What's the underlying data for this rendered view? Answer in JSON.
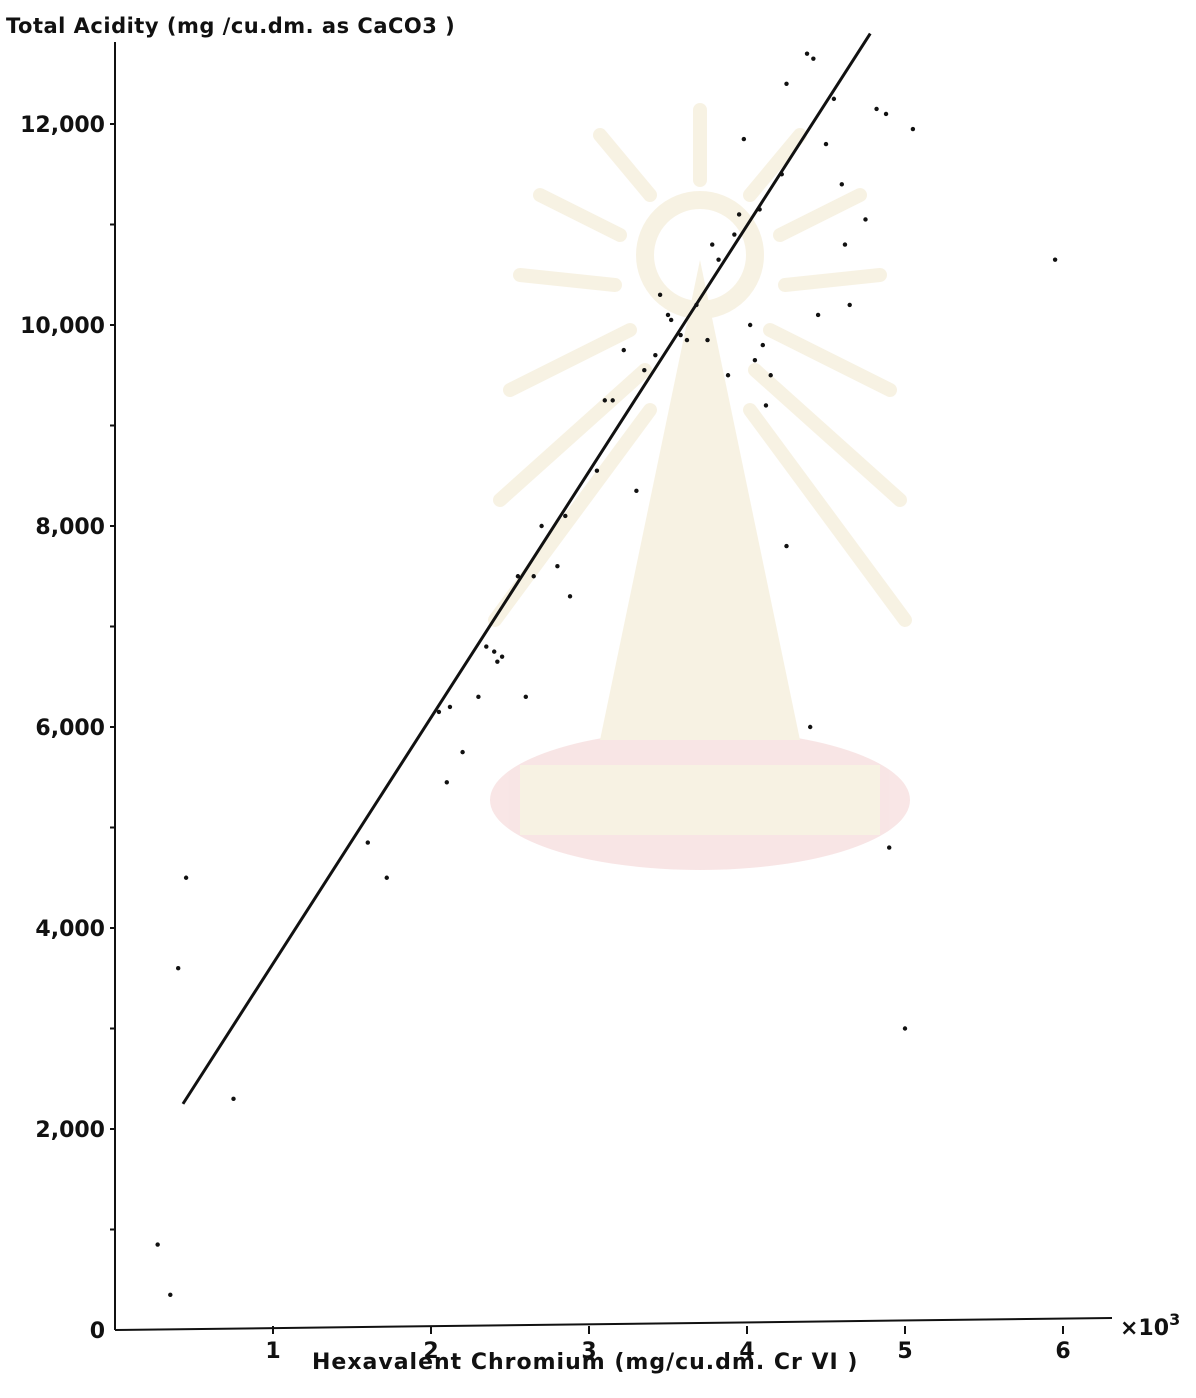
{
  "chart_data": {
    "type": "scatter",
    "title": "",
    "xlabel": "Hexavalent   Chromium (mg/cu.dm. Cr VI )",
    "ylabel": "Total   Acidity (mg /cu.dm.   as   CaCO3 )",
    "x_multiplier_label": "×10",
    "x_multiplier_exponent": "3",
    "xlim": [
      0,
      6.5
    ],
    "ylim": [
      0,
      13000
    ],
    "x_ticks": [
      "1",
      "2",
      "3",
      "4",
      "5",
      "6"
    ],
    "y_ticks": [
      "0",
      "2,000",
      "4,000",
      "6,000",
      "8,000",
      "10,000",
      "12,000"
    ],
    "grid": false,
    "fit_line": {
      "x": [
        0.43,
        4.78
      ],
      "y": [
        2250,
        12900
      ]
    },
    "points": [
      [
        0.27,
        850
      ],
      [
        0.35,
        350
      ],
      [
        0.75,
        2300
      ],
      [
        0.45,
        4500
      ],
      [
        0.4,
        3600
      ],
      [
        1.6,
        4850
      ],
      [
        1.72,
        4500
      ],
      [
        2.05,
        6150
      ],
      [
        2.1,
        5450
      ],
      [
        2.12,
        6200
      ],
      [
        2.2,
        5750
      ],
      [
        2.3,
        6300
      ],
      [
        2.35,
        6800
      ],
      [
        2.4,
        6750
      ],
      [
        2.45,
        6700
      ],
      [
        2.42,
        6650
      ],
      [
        2.6,
        6300
      ],
      [
        2.55,
        7500
      ],
      [
        2.65,
        7500
      ],
      [
        2.7,
        8000
      ],
      [
        2.8,
        7600
      ],
      [
        2.85,
        8100
      ],
      [
        2.88,
        7300
      ],
      [
        3.05,
        8550
      ],
      [
        3.1,
        9250
      ],
      [
        3.15,
        9250
      ],
      [
        3.3,
        8350
      ],
      [
        3.35,
        9550
      ],
      [
        3.22,
        9750
      ],
      [
        3.42,
        9700
      ],
      [
        3.45,
        10300
      ],
      [
        3.5,
        10100
      ],
      [
        3.52,
        10050
      ],
      [
        3.58,
        9900
      ],
      [
        3.62,
        9850
      ],
      [
        3.68,
        10200
      ],
      [
        3.75,
        9850
      ],
      [
        3.78,
        10800
      ],
      [
        3.82,
        10650
      ],
      [
        3.88,
        9500
      ],
      [
        3.92,
        10900
      ],
      [
        3.95,
        11100
      ],
      [
        3.98,
        11850
      ],
      [
        4.02,
        10000
      ],
      [
        4.05,
        9650
      ],
      [
        4.08,
        11150
      ],
      [
        4.1,
        9800
      ],
      [
        4.12,
        9200
      ],
      [
        4.15,
        9500
      ],
      [
        4.22,
        11500
      ],
      [
        4.25,
        12400
      ],
      [
        4.38,
        12700
      ],
      [
        4.42,
        12650
      ],
      [
        4.45,
        10100
      ],
      [
        4.5,
        11800
      ],
      [
        4.55,
        12250
      ],
      [
        4.6,
        11400
      ],
      [
        4.62,
        10800
      ],
      [
        4.65,
        10200
      ],
      [
        4.75,
        11050
      ],
      [
        4.82,
        12150
      ],
      [
        4.88,
        12100
      ],
      [
        5.05,
        11950
      ],
      [
        5.95,
        10650
      ],
      [
        5.0,
        3000
      ],
      [
        4.4,
        6000
      ],
      [
        4.9,
        4800
      ],
      [
        4.25,
        7800
      ]
    ]
  }
}
